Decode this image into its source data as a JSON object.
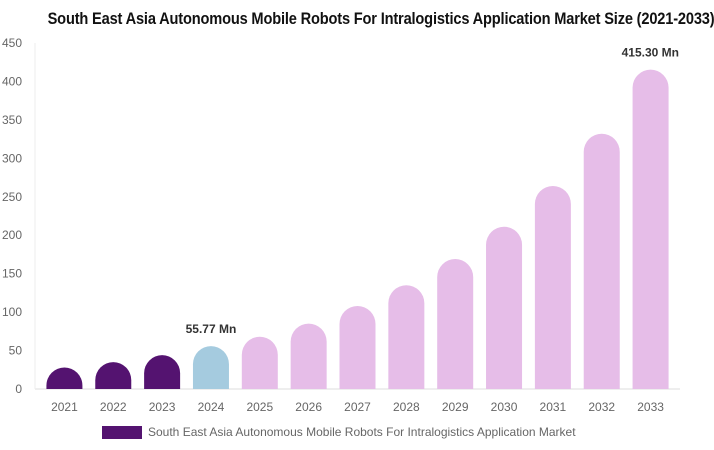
{
  "chart_data": {
    "type": "bar",
    "title": "South East Asia Autonomous Mobile Robots For Intralogistics Application Market Size (2021-2033)",
    "categories": [
      "2021",
      "2022",
      "2023",
      "2024",
      "2025",
      "2026",
      "2027",
      "2028",
      "2029",
      "2030",
      "2031",
      "2032",
      "2033"
    ],
    "series": [
      {
        "name": "South East Asia Autonomous Mobile Robots For Intralogistics Application Market",
        "values": [
          28,
          35,
          44,
          55.77,
          68,
          85,
          108,
          135,
          169,
          211,
          264,
          332,
          415.3
        ]
      }
    ],
    "ylim": [
      0,
      450
    ],
    "yticks": [
      0,
      50,
      100,
      150,
      200,
      250,
      300,
      350,
      400,
      450
    ],
    "data_labels": [
      {
        "index": 3,
        "text": "55.77 Mn"
      },
      {
        "index": 12,
        "text": "415.30 Mn"
      }
    ],
    "colors": {
      "historical": "#541370",
      "base_year": "#a5cbdf",
      "forecast": "#e6bde8"
    },
    "grid": false,
    "legend_position": "bottom"
  }
}
